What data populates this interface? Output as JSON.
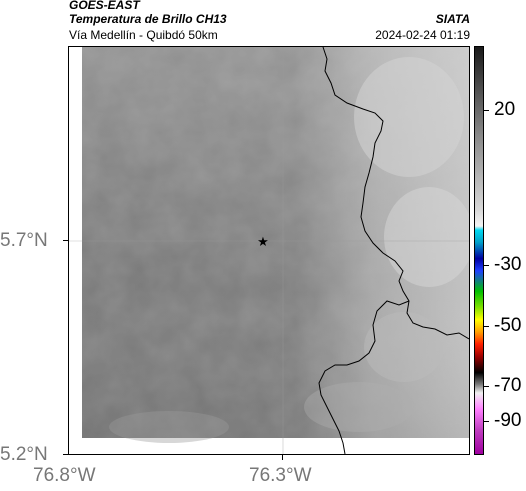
{
  "header": {
    "satellite": "GOES-EAST",
    "product": "Temperatura de Brillo CH13",
    "route": "Vía Medellín - Quibdó 50km",
    "agency": "SIATA",
    "timestamp": "2024-02-24 01:19"
  },
  "axes": {
    "lat_ticks": [
      "5.7°N",
      "5.2°N"
    ],
    "lon_ticks": [
      "76.8°W",
      "76.3°W"
    ]
  },
  "colorbar": {
    "ticks": [
      "20",
      "-30",
      "-50",
      "-70",
      "-90"
    ],
    "unit": ""
  },
  "map": {
    "marker_icon": "star-icon",
    "colors": {
      "cloud_dark": "#7a7a7a",
      "cloud_light": "#d0d0d0",
      "border_line": "#000000",
      "grid_line": "#bbbbbb"
    }
  }
}
